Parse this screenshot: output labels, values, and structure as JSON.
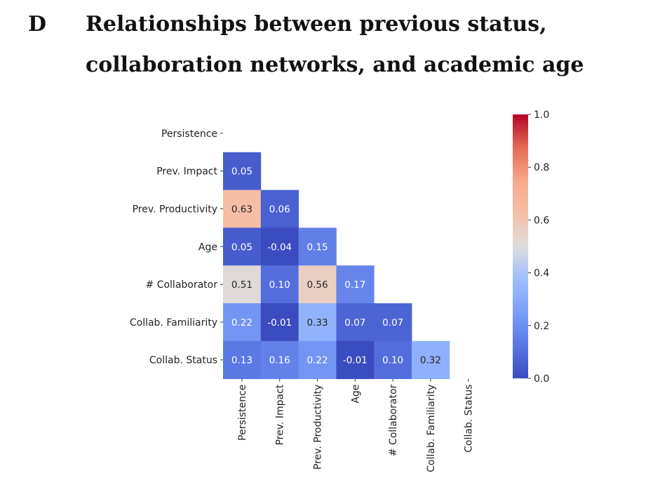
{
  "section": {
    "letter": "D",
    "title": "Relationships between previous status, collaboration networks, and academic age"
  },
  "chart_data": {
    "type": "heatmap",
    "labels": [
      "Persistence",
      "Prev. Impact",
      "Prev. Productivity",
      "Age",
      "# Collaborator",
      "Collab. Familiarity",
      "Collab. Status"
    ],
    "matrix": [
      [
        null,
        null,
        null,
        null,
        null,
        null,
        null
      ],
      [
        0.05,
        null,
        null,
        null,
        null,
        null,
        null
      ],
      [
        0.63,
        0.06,
        null,
        null,
        null,
        null,
        null
      ],
      [
        0.05,
        -0.04,
        0.15,
        null,
        null,
        null,
        null
      ],
      [
        0.51,
        0.1,
        0.56,
        0.17,
        null,
        null,
        null
      ],
      [
        0.22,
        -0.01,
        0.33,
        0.07,
        0.07,
        null,
        null
      ],
      [
        0.13,
        0.16,
        0.22,
        -0.01,
        0.1,
        0.32,
        null
      ]
    ],
    "mask": "upper-triangle-including-diagonal",
    "colormap": "coolwarm",
    "colorbar": {
      "range": [
        0.0,
        1.0
      ],
      "ticks": [
        "0.0",
        "0.2",
        "0.4",
        "0.6",
        "0.8",
        "1.0"
      ]
    }
  }
}
